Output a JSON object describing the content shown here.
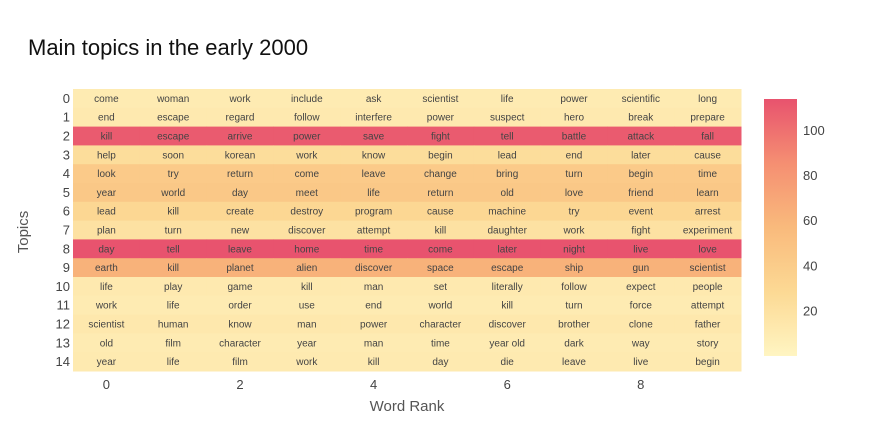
{
  "chart_data": {
    "type": "heatmap",
    "title": "Main topics in the early 2000",
    "xlabel": "Word Rank",
    "ylabel": "Topics",
    "x_ticks": [
      0,
      2,
      4,
      6,
      8
    ],
    "y_categories": [
      "0",
      "1",
      "2",
      "3",
      "4",
      "5",
      "6",
      "7",
      "8",
      "9",
      "10",
      "11",
      "12",
      "13",
      "14"
    ],
    "colorbar": {
      "min": 0,
      "max": 114,
      "ticks": [
        20,
        40,
        60,
        80,
        100
      ]
    },
    "colorscale": [
      "#fff5c2",
      "#fcd994",
      "#f9ba7c",
      "#f58f72",
      "#e8536e"
    ],
    "words": [
      [
        "come",
        "woman",
        "work",
        "include",
        "ask",
        "scientist",
        "life",
        "power",
        "scientific",
        "long"
      ],
      [
        "end",
        "escape",
        "regard",
        "follow",
        "interfere",
        "power",
        "suspect",
        "hero",
        "break",
        "prepare"
      ],
      [
        "kill",
        "escape",
        "arrive",
        "power",
        "save",
        "fight",
        "tell",
        "battle",
        "attack",
        "fall"
      ],
      [
        "help",
        "soon",
        "korean",
        "work",
        "know",
        "begin",
        "lead",
        "end",
        "later",
        "cause"
      ],
      [
        "look",
        "try",
        "return",
        "come",
        "leave",
        "change",
        "bring",
        "turn",
        "begin",
        "time"
      ],
      [
        "year",
        "world",
        "day",
        "meet",
        "life",
        "return",
        "old",
        "love",
        "friend",
        "learn"
      ],
      [
        "lead",
        "kill",
        "create",
        "destroy",
        "program",
        "cause",
        "machine",
        "try",
        "event",
        "arrest"
      ],
      [
        "plan",
        "turn",
        "new",
        "discover",
        "attempt",
        "kill",
        "daughter",
        "work",
        "fight",
        "experiment"
      ],
      [
        "day",
        "tell",
        "leave",
        "home",
        "time",
        "come",
        "later",
        "night",
        "live",
        "love"
      ],
      [
        "earth",
        "kill",
        "planet",
        "alien",
        "discover",
        "space",
        "escape",
        "ship",
        "gun",
        "scientist"
      ],
      [
        "life",
        "play",
        "game",
        "kill",
        "man",
        "set",
        "literally",
        "follow",
        "expect",
        "people"
      ],
      [
        "work",
        "life",
        "order",
        "use",
        "end",
        "world",
        "kill",
        "turn",
        "force",
        "attempt"
      ],
      [
        "scientist",
        "human",
        "know",
        "man",
        "power",
        "character",
        "discover",
        "brother",
        "clone",
        "father"
      ],
      [
        "old",
        "film",
        "character",
        "year",
        "man",
        "time",
        "year old",
        "dark",
        "way",
        "story"
      ],
      [
        "year",
        "life",
        "film",
        "work",
        "kill",
        "day",
        "die",
        "leave",
        "live",
        "begin"
      ]
    ],
    "values": [
      [
        10,
        10,
        10,
        10,
        10,
        10,
        10,
        10,
        10,
        10
      ],
      [
        12,
        12,
        12,
        12,
        12,
        12,
        12,
        12,
        12,
        12
      ],
      [
        110,
        110,
        110,
        110,
        110,
        110,
        110,
        110,
        110,
        110
      ],
      [
        24,
        24,
        24,
        24,
        24,
        24,
        24,
        24,
        24,
        24
      ],
      [
        42,
        42,
        42,
        42,
        42,
        42,
        42,
        42,
        42,
        42
      ],
      [
        44,
        44,
        44,
        44,
        44,
        44,
        44,
        44,
        44,
        44
      ],
      [
        30,
        30,
        30,
        30,
        30,
        30,
        30,
        30,
        30,
        30
      ],
      [
        20,
        20,
        20,
        20,
        20,
        20,
        20,
        20,
        20,
        20
      ],
      [
        114,
        114,
        114,
        114,
        114,
        114,
        114,
        114,
        114,
        114
      ],
      [
        62,
        62,
        62,
        62,
        62,
        62,
        62,
        62,
        62,
        62
      ],
      [
        12,
        12,
        12,
        12,
        12,
        12,
        12,
        12,
        12,
        12
      ],
      [
        10,
        10,
        10,
        10,
        10,
        10,
        10,
        10,
        10,
        10
      ],
      [
        13,
        13,
        13,
        13,
        13,
        13,
        13,
        13,
        13,
        13
      ],
      [
        10,
        10,
        10,
        10,
        10,
        10,
        10,
        10,
        10,
        10
      ],
      [
        11,
        11,
        11,
        11,
        11,
        11,
        11,
        11,
        11,
        11
      ]
    ]
  }
}
